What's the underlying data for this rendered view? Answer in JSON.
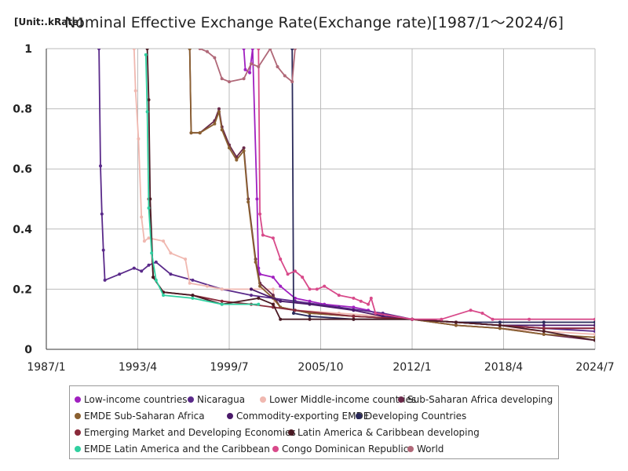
{
  "chart_data": {
    "type": "line",
    "title": "Nominal Effective Exchange Rate(Exchange rate)[1987/1～2024/6]",
    "unit_label": "[Unit:.kRate]",
    "xlabel": "",
    "ylabel": "",
    "x_range": [
      1987.0,
      2024.5
    ],
    "ylim": [
      0,
      1
    ],
    "y_ticks": [
      0,
      0.2,
      0.4,
      0.6,
      0.8,
      1
    ],
    "y_tick_labels": [
      "0",
      "0.2",
      "0.4",
      "0.6",
      "0.8",
      "1"
    ],
    "x_ticks": [
      1987.0,
      1993.25,
      1999.5,
      2005.75,
      2012.0,
      2018.25,
      2024.5
    ],
    "x_tick_labels": [
      "1987/1",
      "1993/4",
      "1999/7",
      "2005/10",
      "2012/1",
      "2018/4",
      "2024/7"
    ],
    "grid": true,
    "legend_position": "bottom",
    "series": [
      {
        "name": "Low-income countries",
        "color": "#a020c0",
        "points": [
          [
            2000.5,
            1.0
          ],
          [
            2000.6,
            0.93
          ],
          [
            2000.9,
            0.92
          ],
          [
            2001.1,
            1.0
          ],
          [
            2001.4,
            0.5
          ],
          [
            2001.5,
            0.27
          ],
          [
            2001.6,
            0.25
          ],
          [
            2002.5,
            0.24
          ],
          [
            2003.0,
            0.21
          ],
          [
            2004.0,
            0.17
          ],
          [
            2005.0,
            0.16
          ],
          [
            2006.0,
            0.15
          ],
          [
            2008.0,
            0.14
          ],
          [
            2009.0,
            0.13
          ],
          [
            2010.0,
            0.11
          ],
          [
            2012.0,
            0.1
          ],
          [
            2015.0,
            0.09
          ],
          [
            2018.0,
            0.08
          ],
          [
            2021.0,
            0.07
          ],
          [
            2024.5,
            0.07
          ]
        ]
      },
      {
        "name": "Nicaragua",
        "color": "#5a2a8a",
        "points": [
          [
            1990.6,
            1.0
          ],
          [
            1990.7,
            0.61
          ],
          [
            1990.8,
            0.45
          ],
          [
            1990.9,
            0.33
          ],
          [
            1991.0,
            0.23
          ],
          [
            1992.0,
            0.25
          ],
          [
            1993.0,
            0.27
          ],
          [
            1993.5,
            0.26
          ],
          [
            1994.0,
            0.28
          ],
          [
            1994.5,
            0.29
          ],
          [
            1995.5,
            0.25
          ],
          [
            1997.0,
            0.23
          ],
          [
            1999.0,
            0.2
          ],
          [
            2001.0,
            0.18
          ],
          [
            2004.0,
            0.16
          ],
          [
            2007.0,
            0.14
          ],
          [
            2010.0,
            0.12
          ],
          [
            2012.0,
            0.1
          ],
          [
            2015.0,
            0.09
          ],
          [
            2018.0,
            0.08
          ],
          [
            2021.0,
            0.07
          ],
          [
            2024.5,
            0.06
          ]
        ]
      },
      {
        "name": "Lower Middle-income countries",
        "color": "#f0b8b0",
        "points": [
          [
            1993.0,
            1.0
          ],
          [
            1993.1,
            0.86
          ],
          [
            1993.3,
            0.7
          ],
          [
            1993.5,
            0.44
          ],
          [
            1993.7,
            0.36
          ],
          [
            1994.0,
            0.37
          ],
          [
            1995.0,
            0.36
          ],
          [
            1995.5,
            0.32
          ],
          [
            1996.5,
            0.3
          ],
          [
            1996.8,
            0.22
          ],
          [
            1998.0,
            0.21
          ],
          [
            1999.0,
            0.2
          ],
          [
            2001.0,
            0.2
          ],
          [
            2002.5,
            0.2
          ],
          [
            2002.6,
            0.14
          ],
          [
            2004.0,
            0.13
          ],
          [
            2007.0,
            0.12
          ],
          [
            2010.0,
            0.11
          ],
          [
            2012.0,
            0.1
          ],
          [
            2015.0,
            0.08
          ],
          [
            2018.0,
            0.07
          ],
          [
            2021.0,
            0.06
          ],
          [
            2024.5,
            0.05
          ]
        ]
      },
      {
        "name": "Sub-Saharan Africa developing",
        "color": "#6a2a4a",
        "points": [
          [
            1996.8,
            1.0
          ],
          [
            1996.9,
            0.72
          ],
          [
            1997.5,
            0.72
          ],
          [
            1998.5,
            0.76
          ],
          [
            1998.8,
            0.8
          ],
          [
            1999.0,
            0.74
          ],
          [
            1999.5,
            0.68
          ],
          [
            2000.0,
            0.64
          ],
          [
            2000.5,
            0.67
          ],
          [
            2000.8,
            0.5
          ],
          [
            2001.3,
            0.3
          ],
          [
            2001.6,
            0.22
          ],
          [
            2002.5,
            0.18
          ],
          [
            2003.0,
            0.14
          ],
          [
            2005.0,
            0.12
          ],
          [
            2008.0,
            0.11
          ],
          [
            2012.0,
            0.1
          ],
          [
            2015.0,
            0.08
          ],
          [
            2018.0,
            0.07
          ],
          [
            2021.0,
            0.05
          ],
          [
            2024.5,
            0.03
          ]
        ]
      },
      {
        "name": "EMDE Sub-Saharan Africa",
        "color": "#8a6030",
        "points": [
          [
            1996.8,
            1.0
          ],
          [
            1996.9,
            0.72
          ],
          [
            1997.5,
            0.72
          ],
          [
            1998.5,
            0.75
          ],
          [
            1998.8,
            0.79
          ],
          [
            1999.0,
            0.73
          ],
          [
            1999.5,
            0.67
          ],
          [
            2000.0,
            0.63
          ],
          [
            2000.5,
            0.66
          ],
          [
            2000.8,
            0.49
          ],
          [
            2001.3,
            0.29
          ],
          [
            2001.6,
            0.21
          ],
          [
            2002.5,
            0.17
          ],
          [
            2003.0,
            0.14
          ],
          [
            2005.0,
            0.12
          ],
          [
            2008.0,
            0.11
          ],
          [
            2012.0,
            0.1
          ],
          [
            2015.0,
            0.08
          ],
          [
            2018.0,
            0.07
          ],
          [
            2021.0,
            0.05
          ],
          [
            2024.5,
            0.04
          ]
        ]
      },
      {
        "name": "Commodity-exporting EMDE",
        "color": "#4a1a6a",
        "points": [
          [
            2001.0,
            0.2
          ],
          [
            2003.0,
            0.16
          ],
          [
            2005.0,
            0.15
          ],
          [
            2008.0,
            0.13
          ],
          [
            2010.0,
            0.11
          ],
          [
            2012.0,
            0.1
          ],
          [
            2015.0,
            0.09
          ],
          [
            2018.0,
            0.08
          ],
          [
            2021.0,
            0.08
          ],
          [
            2024.5,
            0.08
          ]
        ]
      },
      {
        "name": "Developing Countries",
        "color": "#2a2a5a",
        "points": [
          [
            2003.8,
            1.0
          ],
          [
            2003.9,
            0.12
          ],
          [
            2005.0,
            0.11
          ],
          [
            2008.0,
            0.1
          ],
          [
            2012.0,
            0.1
          ],
          [
            2015.0,
            0.09
          ],
          [
            2018.0,
            0.09
          ],
          [
            2021.0,
            0.09
          ],
          [
            2024.5,
            0.09
          ]
        ]
      },
      {
        "name": "Emerging Market and Developing Economies",
        "color": "#8a2a3a",
        "points": [
          [
            1994.0,
            0.5
          ],
          [
            1994.3,
            0.24
          ],
          [
            1995.0,
            0.19
          ],
          [
            1997.0,
            0.18
          ],
          [
            1999.0,
            0.16
          ],
          [
            2001.0,
            0.15
          ],
          [
            2002.5,
            0.14
          ],
          [
            2004.0,
            0.13
          ],
          [
            2008.0,
            0.11
          ],
          [
            2012.0,
            0.1
          ],
          [
            2015.0,
            0.09
          ],
          [
            2018.0,
            0.08
          ],
          [
            2021.0,
            0.07
          ],
          [
            2024.5,
            0.07
          ]
        ]
      },
      {
        "name": "Latin America & Caribbean developing",
        "color": "#4a1a24",
        "points": [
          [
            1993.9,
            1.0
          ],
          [
            1994.0,
            0.83
          ],
          [
            1994.1,
            0.5
          ],
          [
            1994.3,
            0.24
          ],
          [
            1995.0,
            0.19
          ],
          [
            1997.0,
            0.18
          ],
          [
            1999.0,
            0.15
          ],
          [
            2001.5,
            0.17
          ],
          [
            2002.5,
            0.15
          ],
          [
            2003.0,
            0.1
          ],
          [
            2005.0,
            0.1
          ],
          [
            2008.0,
            0.1
          ],
          [
            2012.0,
            0.1
          ],
          [
            2015.0,
            0.09
          ],
          [
            2018.0,
            0.08
          ],
          [
            2021.0,
            0.06
          ],
          [
            2024.5,
            0.03
          ]
        ]
      },
      {
        "name": "EMDE Latin America and the Caribbean",
        "color": "#30d0a0",
        "points": [
          [
            1993.8,
            0.98
          ],
          [
            1993.9,
            0.79
          ],
          [
            1994.0,
            0.47
          ],
          [
            1994.2,
            0.32
          ],
          [
            1994.5,
            0.23
          ],
          [
            1995.0,
            0.18
          ],
          [
            1997.0,
            0.17
          ],
          [
            1999.0,
            0.15
          ],
          [
            2001.5,
            0.15
          ]
        ]
      },
      {
        "name": "Congo Dominican Republic",
        "color": "#d84a8a",
        "points": [
          [
            2001.5,
            1.0
          ],
          [
            2001.6,
            0.45
          ],
          [
            2001.8,
            0.38
          ],
          [
            2002.5,
            0.37
          ],
          [
            2003.0,
            0.3
          ],
          [
            2003.5,
            0.25
          ],
          [
            2004.0,
            0.26
          ],
          [
            2004.5,
            0.24
          ],
          [
            2005.0,
            0.2
          ],
          [
            2005.5,
            0.2
          ],
          [
            2006.0,
            0.21
          ],
          [
            2007.0,
            0.18
          ],
          [
            2008.0,
            0.17
          ],
          [
            2008.5,
            0.16
          ],
          [
            2009.0,
            0.15
          ],
          [
            2009.2,
            0.17
          ],
          [
            2009.5,
            0.12
          ],
          [
            2012.0,
            0.1
          ],
          [
            2014.0,
            0.1
          ],
          [
            2016.0,
            0.13
          ],
          [
            2016.8,
            0.12
          ],
          [
            2017.5,
            0.1
          ],
          [
            2020.0,
            0.1
          ],
          [
            2024.5,
            0.1
          ]
        ]
      },
      {
        "name": "World",
        "color": "#b06878",
        "points": [
          [
            1997.5,
            1.0
          ],
          [
            1998.0,
            0.99
          ],
          [
            1998.5,
            0.97
          ],
          [
            1999.0,
            0.9
          ],
          [
            1999.5,
            0.89
          ],
          [
            2000.5,
            0.9
          ],
          [
            2001.0,
            0.95
          ],
          [
            2001.5,
            0.94
          ],
          [
            2002.3,
            1.0
          ],
          [
            2002.8,
            0.94
          ],
          [
            2003.3,
            0.91
          ],
          [
            2003.8,
            0.89
          ],
          [
            2004.0,
            1.0
          ]
        ]
      }
    ]
  }
}
